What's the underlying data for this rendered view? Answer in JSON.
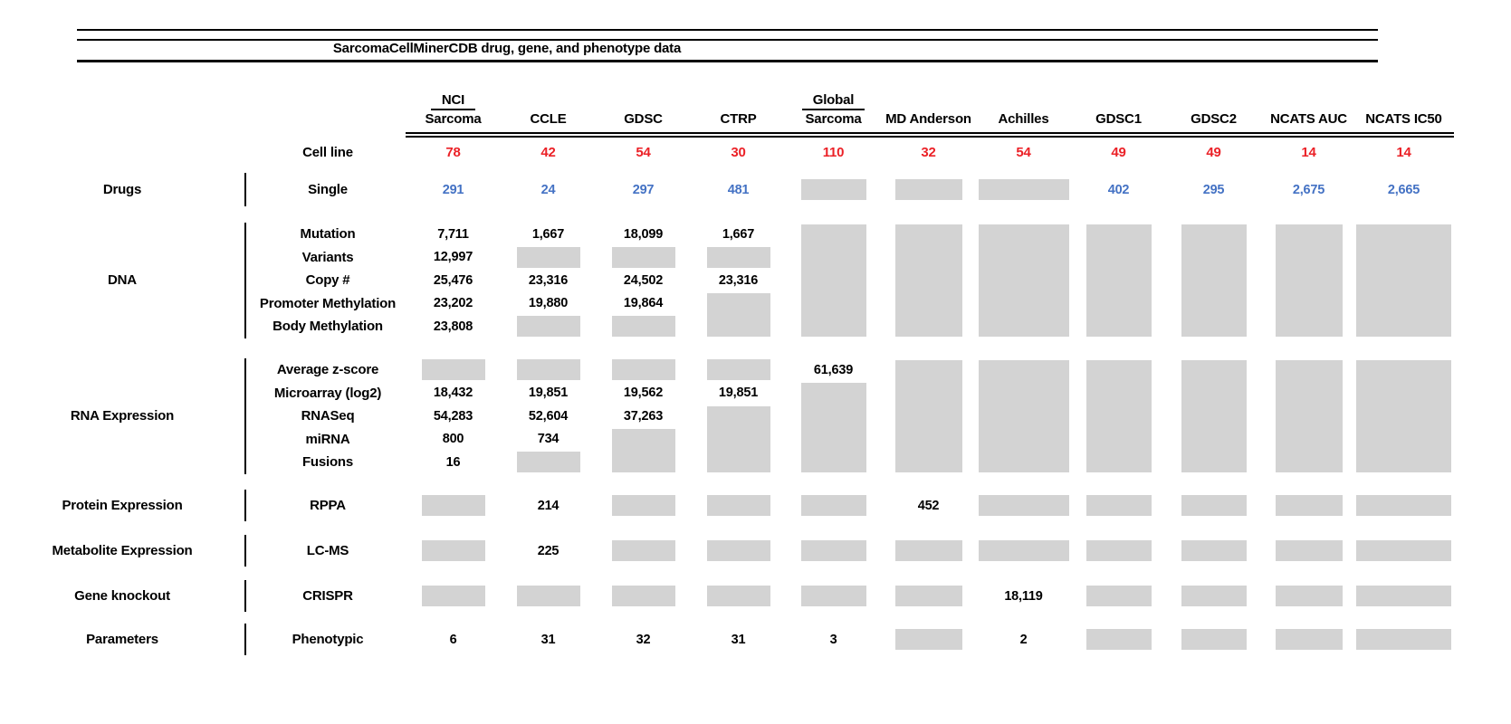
{
  "title": "SarcomaCellMinerCDB drug, gene, and phenotype data",
  "colors": {
    "cell_line_count": "#EB2127",
    "drug_count": "#4472C4",
    "no_data_box": "#D3D3D3",
    "text": "#000000"
  },
  "chart_data": {
    "type": "table",
    "title": "SarcomaCellMinerCDB drug, gene, and phenotype data",
    "columns": [
      {
        "top": "NCI",
        "label": "Sarcoma"
      },
      {
        "label": "CCLE"
      },
      {
        "label": "GDSC"
      },
      {
        "label": "CTRP"
      },
      {
        "top": "Global",
        "label": "Sarcoma"
      },
      {
        "label": "MD Anderson"
      },
      {
        "label": "Achilles"
      },
      {
        "label": "GDSC1"
      },
      {
        "label": "GDSC2"
      },
      {
        "label": "NCATS AUC"
      },
      {
        "label": "NCATS IC50"
      }
    ],
    "cell_line": {
      "label": "Cell line",
      "color": "red",
      "counts": [
        "78",
        "42",
        "54",
        "30",
        "110",
        "32",
        "54",
        "49",
        "49",
        "14",
        "14"
      ]
    },
    "sections": [
      {
        "category": "Drugs",
        "style": "blue",
        "rows": [
          {
            "label": "Single",
            "cells": [
              "291",
              "24",
              "297",
              "481",
              "#",
              "#",
              "#",
              "402",
              "295",
              "2,675",
              "2,665"
            ]
          }
        ]
      },
      {
        "category": "DNA",
        "rows": [
          {
            "label": "Mutation",
            "cells": [
              "7,711",
              "1,667",
              "18,099",
              "1,667",
              "#5",
              "#5",
              "#5",
              "#5",
              "#5",
              "#5",
              "#5"
            ]
          },
          {
            "label": "Variants",
            "cells": [
              "12,997",
              "#",
              "#",
              "#",
              "",
              "",
              "",
              "",
              "",
              "",
              ""
            ]
          },
          {
            "label": "Copy #",
            "cells": [
              "25,476",
              "23,316",
              "24,502",
              "23,316",
              "",
              "",
              "",
              "",
              "",
              "",
              ""
            ]
          },
          {
            "label": "Promoter Methylation",
            "cells": [
              "23,202",
              "19,880",
              "19,864",
              "#2",
              "",
              "",
              "",
              "",
              "",
              "",
              ""
            ]
          },
          {
            "label": "Body Methylation",
            "cells": [
              "23,808",
              "#",
              "#",
              "",
              "",
              "",
              "",
              "",
              "",
              "",
              ""
            ]
          }
        ]
      },
      {
        "category": "RNA Expression",
        "rows": [
          {
            "label": "Average z-score",
            "cells": [
              "#",
              "#",
              "#",
              "#",
              "61,639",
              "#5",
              "#5",
              "#5",
              "#5",
              "#5",
              "#5"
            ]
          },
          {
            "label": "Microarray (log2)",
            "cells": [
              "18,432",
              "19,851",
              "19,562",
              "19,851",
              "#4",
              "",
              "",
              "",
              "",
              "",
              ""
            ]
          },
          {
            "label": "RNASeq",
            "cells": [
              "54,283",
              "52,604",
              "37,263",
              "#3",
              "",
              "",
              "",
              "",
              "",
              "",
              ""
            ]
          },
          {
            "label": "miRNA",
            "cells": [
              "800",
              "734",
              "#2",
              "",
              "",
              "",
              "",
              "",
              "",
              "",
              ""
            ]
          },
          {
            "label": "Fusions",
            "cells": [
              "16",
              "#",
              "",
              "",
              "",
              "",
              "",
              "",
              "",
              "",
              ""
            ]
          }
        ]
      },
      {
        "category": "Protein Expression",
        "rows": [
          {
            "label": "RPPA",
            "cells": [
              "#",
              "214",
              "#",
              "#",
              "#",
              "452",
              "#",
              "#",
              "#",
              "#",
              "#"
            ]
          }
        ]
      },
      {
        "category": "Metabolite Expression",
        "rows": [
          {
            "label": "LC-MS",
            "cells": [
              "#",
              "225",
              "#",
              "#",
              "#",
              "#",
              "#",
              "#",
              "#",
              "#",
              "#"
            ]
          }
        ]
      },
      {
        "category": "Gene knockout",
        "rows": [
          {
            "label": "CRISPR",
            "cells": [
              "#",
              "#",
              "#",
              "#",
              "#",
              "#",
              "18,119",
              "#",
              "#",
              "#",
              "#"
            ]
          }
        ]
      },
      {
        "category": "Parameters",
        "rows": [
          {
            "label": "Phenotypic",
            "cells": [
              "6",
              "31",
              "32",
              "31",
              "3",
              "#",
              "2",
              "#",
              "#",
              "#",
              "#"
            ]
          }
        ]
      }
    ]
  }
}
